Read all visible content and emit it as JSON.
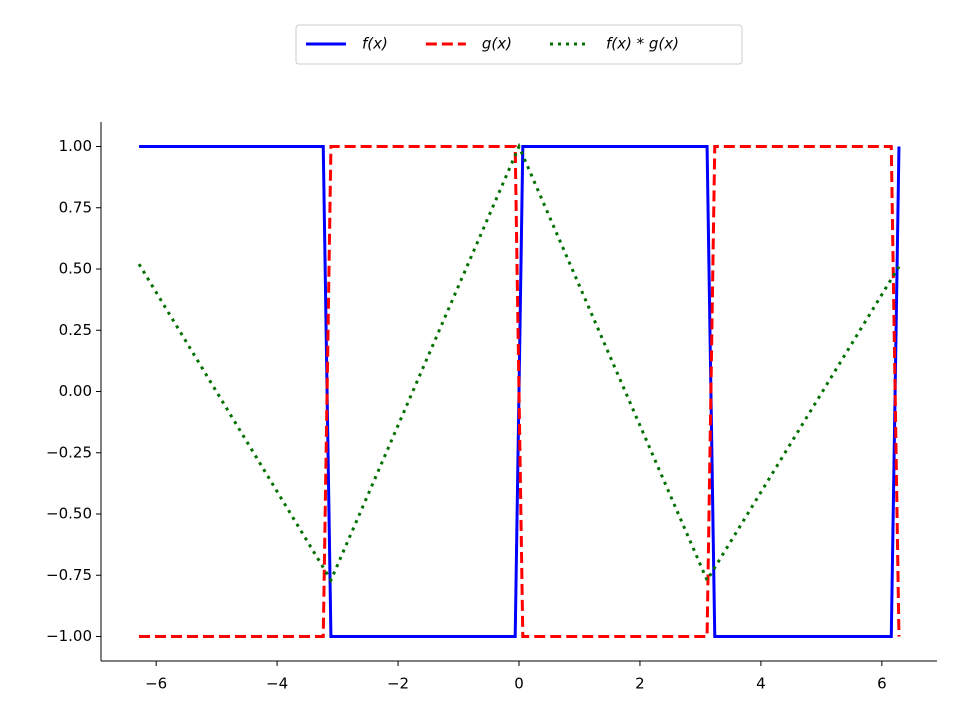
{
  "chart_data": {
    "type": "line",
    "xlim": [
      -6.912,
      6.912
    ],
    "ylim": [
      -1.1,
      1.1
    ],
    "xticks": [
      {
        "value": -6,
        "label": "−6"
      },
      {
        "value": -4,
        "label": "−4"
      },
      {
        "value": -2,
        "label": "−2"
      },
      0,
      2,
      4,
      6
    ],
    "yticks": [
      {
        "value": -1,
        "label": "−1.00"
      },
      {
        "value": -0.75,
        "label": "−0.75"
      },
      {
        "value": -0.5,
        "label": "−0.50"
      },
      {
        "value": -0.25,
        "label": "−0.25"
      },
      {
        "value": 0,
        "label": "0.00"
      },
      {
        "value": 0.25,
        "label": "0.25"
      },
      {
        "value": 0.5,
        "label": "0.50"
      },
      {
        "value": 0.75,
        "label": "0.75"
      },
      {
        "value": 1,
        "label": "1.00"
      }
    ],
    "legend": "upper center",
    "series": [
      {
        "name": "f(x)",
        "color": "#0000ff",
        "style": "solid",
        "x": [
          -6.283,
          -3.237,
          -3.11,
          -0.063,
          0.063,
          3.11,
          3.237,
          6.156,
          6.283
        ],
        "values": [
          1,
          1,
          -1,
          -1,
          1,
          1,
          -1,
          -1,
          1
        ]
      },
      {
        "name": "g(x)",
        "color": "#ff0000",
        "style": "dashed",
        "x": [
          -6.283,
          -3.237,
          -3.11,
          -0.063,
          0.063,
          3.11,
          3.237,
          6.156,
          6.283
        ],
        "values": [
          -1,
          -1,
          1,
          1,
          -1,
          -1,
          1,
          1,
          -1
        ]
      },
      {
        "name": "f(x) * g(x)",
        "color": "#007000",
        "style": "dotted",
        "x": [
          -6.283,
          -3.11,
          0,
          3.11,
          6.283
        ],
        "values": [
          0.52,
          -0.77,
          1.0,
          -0.77,
          0.51
        ]
      }
    ]
  }
}
